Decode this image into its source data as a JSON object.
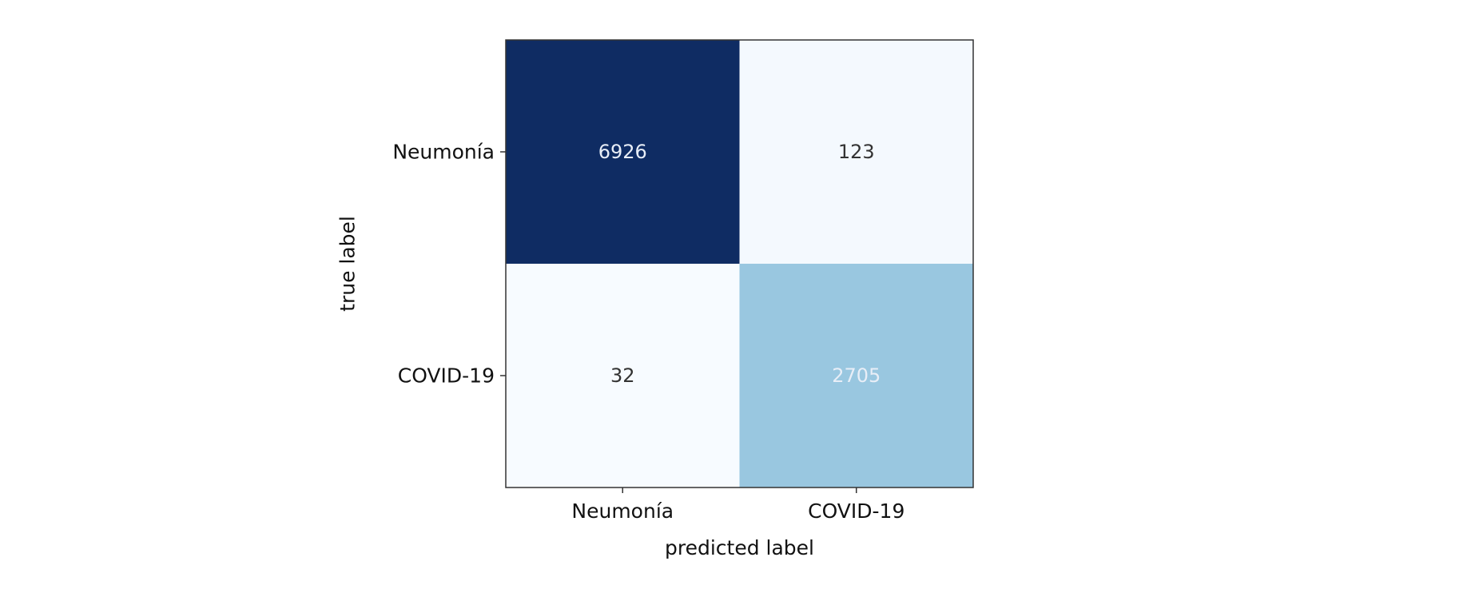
{
  "chart_data": {
    "type": "heatmap",
    "title": "",
    "xlabel": "predicted label",
    "ylabel": "true label",
    "x_categories": [
      "Neumonía",
      "COVID-19"
    ],
    "y_categories": [
      "Neumonía",
      "COVID-19"
    ],
    "values": [
      [
        6926,
        123
      ],
      [
        32,
        2705
      ]
    ],
    "colormap": "Blues",
    "colorbar": false,
    "grid": false,
    "colors": {
      "min": "#f7fbff",
      "max": "#0f2c63",
      "text_on_dark": "#e8eef7",
      "text_on_light": "#333333"
    }
  }
}
